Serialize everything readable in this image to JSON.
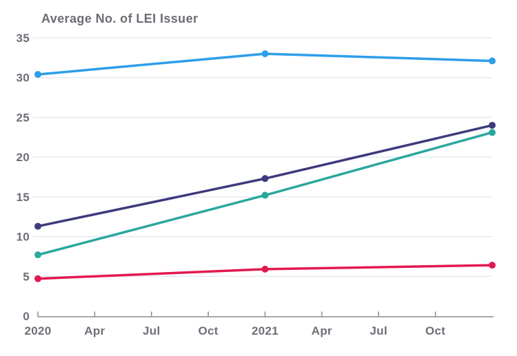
{
  "chart_data": {
    "type": "line",
    "title": "Average No. of LEI Issuer",
    "x_tick_labels": [
      "2020",
      "Apr",
      "Jul",
      "Oct",
      "2021",
      "Apr",
      "Jul",
      "Oct"
    ],
    "y_ticks": [
      0,
      5,
      10,
      15,
      20,
      25,
      30,
      35
    ],
    "ylim": [
      0,
      35
    ],
    "grid": "horizontal-only",
    "legend_position": "none",
    "x_quarter_index_of_points": [
      0,
      4,
      8
    ],
    "series": [
      {
        "name": "light-blue",
        "color": "#2D9EEA",
        "values": [
          30.4,
          33.0,
          32.1
        ]
      },
      {
        "name": "dark-purple",
        "color": "#3E3A7D",
        "values": [
          11.3,
          17.3,
          24.0
        ]
      },
      {
        "name": "teal",
        "color": "#2AA79E",
        "values": [
          7.7,
          15.2,
          23.1
        ]
      },
      {
        "name": "red",
        "color": "#E2194F",
        "values": [
          4.7,
          5.9,
          6.4
        ]
      }
    ],
    "theme": {
      "background_color": "#FFFFFF",
      "gridline_color": "#E3E6F0",
      "axis_color": "#8A8A93",
      "label_color": "#6E6E78",
      "title_color": "#6C6C75"
    }
  }
}
